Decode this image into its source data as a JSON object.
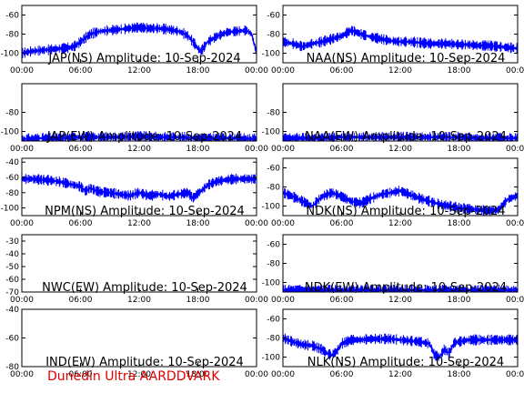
{
  "footer": "Dunedin Ultra AARDDVARK",
  "trace_color": "#0000ff",
  "footer_color": "#e00000",
  "chart_data": [
    {
      "type": "line",
      "title": "JAP(NS) Amplitude: 10-Sep-2024",
      "x_ticks": [
        "00:00",
        "06:00",
        "12:00",
        "18:00",
        "00:00"
      ],
      "xlim": [
        0,
        24
      ],
      "y_ticks": [
        -60,
        -80,
        -100
      ],
      "ylim": [
        -110,
        -50
      ],
      "grid": false,
      "series": [
        {
          "x": [
            0,
            0.5,
            1,
            2,
            3,
            4,
            5,
            5.5,
            6,
            6.5,
            7,
            8,
            9,
            10,
            11,
            12,
            13,
            14,
            15,
            16,
            16.5,
            17,
            17.5,
            18,
            18.3,
            18.6,
            19,
            20,
            21,
            22,
            23,
            23.5,
            24
          ],
          "y": [
            -100,
            -99,
            -98,
            -97,
            -96,
            -95,
            -94,
            -92,
            -88,
            -84,
            -80,
            -77,
            -76,
            -75,
            -74,
            -73,
            -74,
            -74,
            -75,
            -77,
            -79,
            -82,
            -88,
            -95,
            -98,
            -94,
            -88,
            -82,
            -78,
            -77,
            -76,
            -80,
            -100
          ]
        }
      ]
    },
    {
      "type": "line",
      "title": "NAA(NS) Amplitude: 10-Sep-2024",
      "x_ticks": [
        "00:00",
        "06:00",
        "12:00",
        "18:00",
        "00:00"
      ],
      "xlim": [
        0,
        24
      ],
      "y_ticks": [
        -60,
        -80,
        -100
      ],
      "ylim": [
        -110,
        -50
      ],
      "grid": false,
      "series": [
        {
          "x": [
            0,
            1,
            2,
            3,
            4,
            5,
            6,
            7,
            8,
            9,
            10,
            11,
            12,
            13,
            14,
            15,
            16,
            17,
            18,
            19,
            20,
            21,
            22,
            23,
            24
          ],
          "y": [
            -88,
            -90,
            -93,
            -90,
            -88,
            -85,
            -82,
            -76,
            -80,
            -83,
            -85,
            -87,
            -88,
            -88,
            -89,
            -90,
            -90,
            -90,
            -91,
            -91,
            -92,
            -92,
            -93,
            -94,
            -95
          ]
        }
      ]
    },
    {
      "type": "line",
      "title": "JAP(EW) Amplitude: 10-Sep-2024",
      "x_ticks": [
        "00:00",
        "06:00",
        "12:00",
        "18:00",
        "00:00"
      ],
      "xlim": [
        0,
        24
      ],
      "y_ticks": [
        -80,
        -100
      ],
      "ylim": [
        -110,
        -50
      ],
      "grid": false,
      "series": [
        {
          "x": [
            0,
            2,
            4,
            6,
            8,
            10,
            12,
            14,
            16,
            18,
            20,
            22,
            24
          ],
          "y": [
            -108,
            -107,
            -107,
            -106,
            -106,
            -106,
            -105,
            -106,
            -106,
            -107,
            -107,
            -107,
            -108
          ]
        }
      ]
    },
    {
      "type": "line",
      "title": "NAA(EW) Amplitude: 10-Sep-2024",
      "x_ticks": [
        "00:00",
        "06:00",
        "12:00",
        "18:00",
        "00:00"
      ],
      "xlim": [
        0,
        24
      ],
      "y_ticks": [
        -80,
        -100
      ],
      "ylim": [
        -110,
        -50
      ],
      "grid": false,
      "series": [
        {
          "x": [
            0,
            2,
            4,
            6,
            8,
            10,
            12,
            14,
            16,
            18,
            20,
            22,
            24
          ],
          "y": [
            -107,
            -107,
            -107,
            -106,
            -106,
            -106,
            -106,
            -106,
            -106,
            -106,
            -107,
            -107,
            -107
          ]
        }
      ]
    },
    {
      "type": "line",
      "title": "NPM(NS) Amplitude: 10-Sep-2024",
      "x_ticks": [
        "00:00",
        "06:00",
        "12:00",
        "18:00",
        "00:00"
      ],
      "xlim": [
        0,
        24
      ],
      "y_ticks": [
        -40,
        -60,
        -80,
        -100
      ],
      "ylim": [
        -110,
        -35
      ],
      "grid": false,
      "series": [
        {
          "x": [
            0,
            1,
            2,
            3,
            4,
            5,
            6,
            6.5,
            7,
            7.5,
            8,
            9,
            10,
            11,
            12,
            13,
            14,
            15,
            16,
            17,
            17.5,
            18,
            18.5,
            19,
            20,
            21,
            22,
            23,
            24
          ],
          "y": [
            -62,
            -62,
            -63,
            -64,
            -66,
            -69,
            -72,
            -78,
            -74,
            -77,
            -79,
            -80,
            -82,
            -84,
            -80,
            -84,
            -82,
            -85,
            -82,
            -80,
            -87,
            -81,
            -76,
            -70,
            -65,
            -63,
            -62,
            -62,
            -62
          ]
        }
      ]
    },
    {
      "type": "line",
      "title": "NDK(NS) Amplitude: 10-Sep-2024",
      "x_ticks": [
        "00:00",
        "06:00",
        "12:00",
        "18:00",
        "00:00"
      ],
      "xlim": [
        0,
        24
      ],
      "y_ticks": [
        -60,
        -80,
        -100
      ],
      "ylim": [
        -110,
        -50
      ],
      "grid": false,
      "series": [
        {
          "x": [
            0,
            1,
            2,
            3,
            4,
            5,
            6,
            7,
            8,
            9,
            10,
            11,
            12,
            13,
            14,
            15,
            16,
            17,
            18,
            19,
            20,
            21,
            22,
            23,
            24
          ],
          "y": [
            -86,
            -90,
            -95,
            -100,
            -90,
            -86,
            -90,
            -95,
            -97,
            -92,
            -88,
            -86,
            -84,
            -88,
            -92,
            -95,
            -98,
            -100,
            -102,
            -103,
            -104,
            -105,
            -104,
            -93,
            -89
          ]
        }
      ]
    },
    {
      "type": "line",
      "title": "NWC(EW) Amplitude: 10-Sep-2024",
      "x_ticks": [
        "00:00",
        "06:00",
        "12:00",
        "18:00",
        "00:00"
      ],
      "xlim": [
        0,
        24
      ],
      "y_ticks": [
        -30,
        -40,
        -50,
        -60,
        -70
      ],
      "ylim": [
        -70,
        -25
      ],
      "grid": false,
      "series": []
    },
    {
      "type": "line",
      "title": "NDK(EW) Amplitude: 10-Sep-2024",
      "x_ticks": [
        "00:00",
        "06:00",
        "12:00",
        "18:00",
        "00:00"
      ],
      "xlim": [
        0,
        24
      ],
      "y_ticks": [
        -60,
        -80,
        -100
      ],
      "ylim": [
        -110,
        -50
      ],
      "grid": false,
      "series": [
        {
          "x": [
            0,
            2,
            4,
            6,
            8,
            10,
            12,
            14,
            16,
            18,
            20,
            22,
            24
          ],
          "y": [
            -108,
            -108,
            -108,
            -108,
            -108,
            -108,
            -108,
            -108,
            -108,
            -108,
            -108,
            -108,
            -108
          ]
        }
      ]
    },
    {
      "type": "line",
      "title": "IND(EW) Amplitude: 10-Sep-2024",
      "x_ticks": [
        "00:00",
        "06:00",
        "12:00",
        "18:00",
        "00:00"
      ],
      "xlim": [
        0,
        24
      ],
      "y_ticks": [
        -40,
        -60,
        -80
      ],
      "ylim": [
        -80,
        -40
      ],
      "grid": false,
      "series": []
    },
    {
      "type": "line",
      "title": "NLK(NS) Amplitude: 10-Sep-2024",
      "x_ticks": [
        "00:00",
        "06:00",
        "12:00",
        "18:00",
        "00:00"
      ],
      "xlim": [
        0,
        24
      ],
      "y_ticks": [
        -60,
        -80,
        -100
      ],
      "ylim": [
        -110,
        -50
      ],
      "grid": false,
      "series": [
        {
          "x": [
            0,
            1,
            2,
            3,
            4,
            4.5,
            5,
            5.5,
            6,
            7,
            8,
            9,
            10,
            11,
            12,
            13,
            14,
            15,
            15.5,
            16,
            16.5,
            17,
            17.5,
            18,
            19,
            20,
            21,
            22,
            23,
            24
          ],
          "y": [
            -80,
            -84,
            -87,
            -88,
            -92,
            -96,
            -98,
            -94,
            -86,
            -82,
            -82,
            -81,
            -81,
            -81,
            -82,
            -83,
            -84,
            -86,
            -98,
            -100,
            -92,
            -96,
            -85,
            -84,
            -82,
            -82,
            -82,
            -82,
            -82,
            -82
          ]
        }
      ]
    }
  ]
}
